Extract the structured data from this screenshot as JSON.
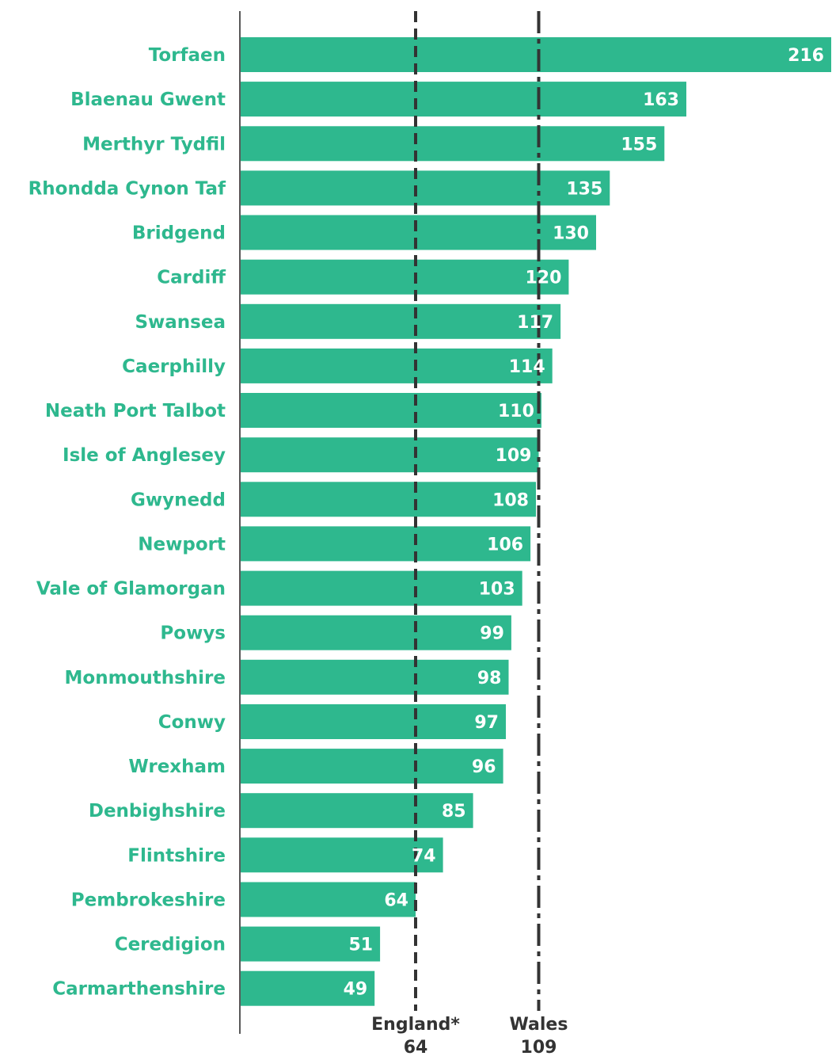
{
  "chart_data": {
    "type": "bar",
    "orientation": "horizontal",
    "categories": [
      "Torfaen",
      "Blaenau Gwent",
      "Merthyr Tydfil",
      "Rhondda Cynon Taf",
      "Bridgend",
      "Cardiff",
      "Swansea",
      "Caerphilly",
      "Neath Port Talbot",
      "Isle of Anglesey",
      "Gwynedd",
      "Newport",
      "Vale of Glamorgan",
      "Powys",
      "Monmouthshire",
      "Conwy",
      "Wrexham",
      "Denbighshire",
      "Flintshire",
      "Pembrokeshire",
      "Ceredigion",
      "Carmarthenshire"
    ],
    "values": [
      216,
      163,
      155,
      135,
      130,
      120,
      117,
      114,
      110,
      109,
      108,
      106,
      103,
      99,
      98,
      97,
      96,
      85,
      74,
      64,
      51,
      49
    ],
    "xlim": [
      0,
      216
    ],
    "reference_lines": [
      {
        "name": "England*",
        "value": 64,
        "label": "64",
        "style": "dashed"
      },
      {
        "name": "Wales",
        "value": 109,
        "label": "109",
        "style": "dash-dot"
      }
    ],
    "title": "",
    "xlabel": "",
    "ylabel": "",
    "grid": false,
    "colors": {
      "bar": "#2eb88e",
      "label": "#2eb88e",
      "value_text": "#ffffff",
      "reference": "#333333",
      "axis": "#222222"
    }
  }
}
